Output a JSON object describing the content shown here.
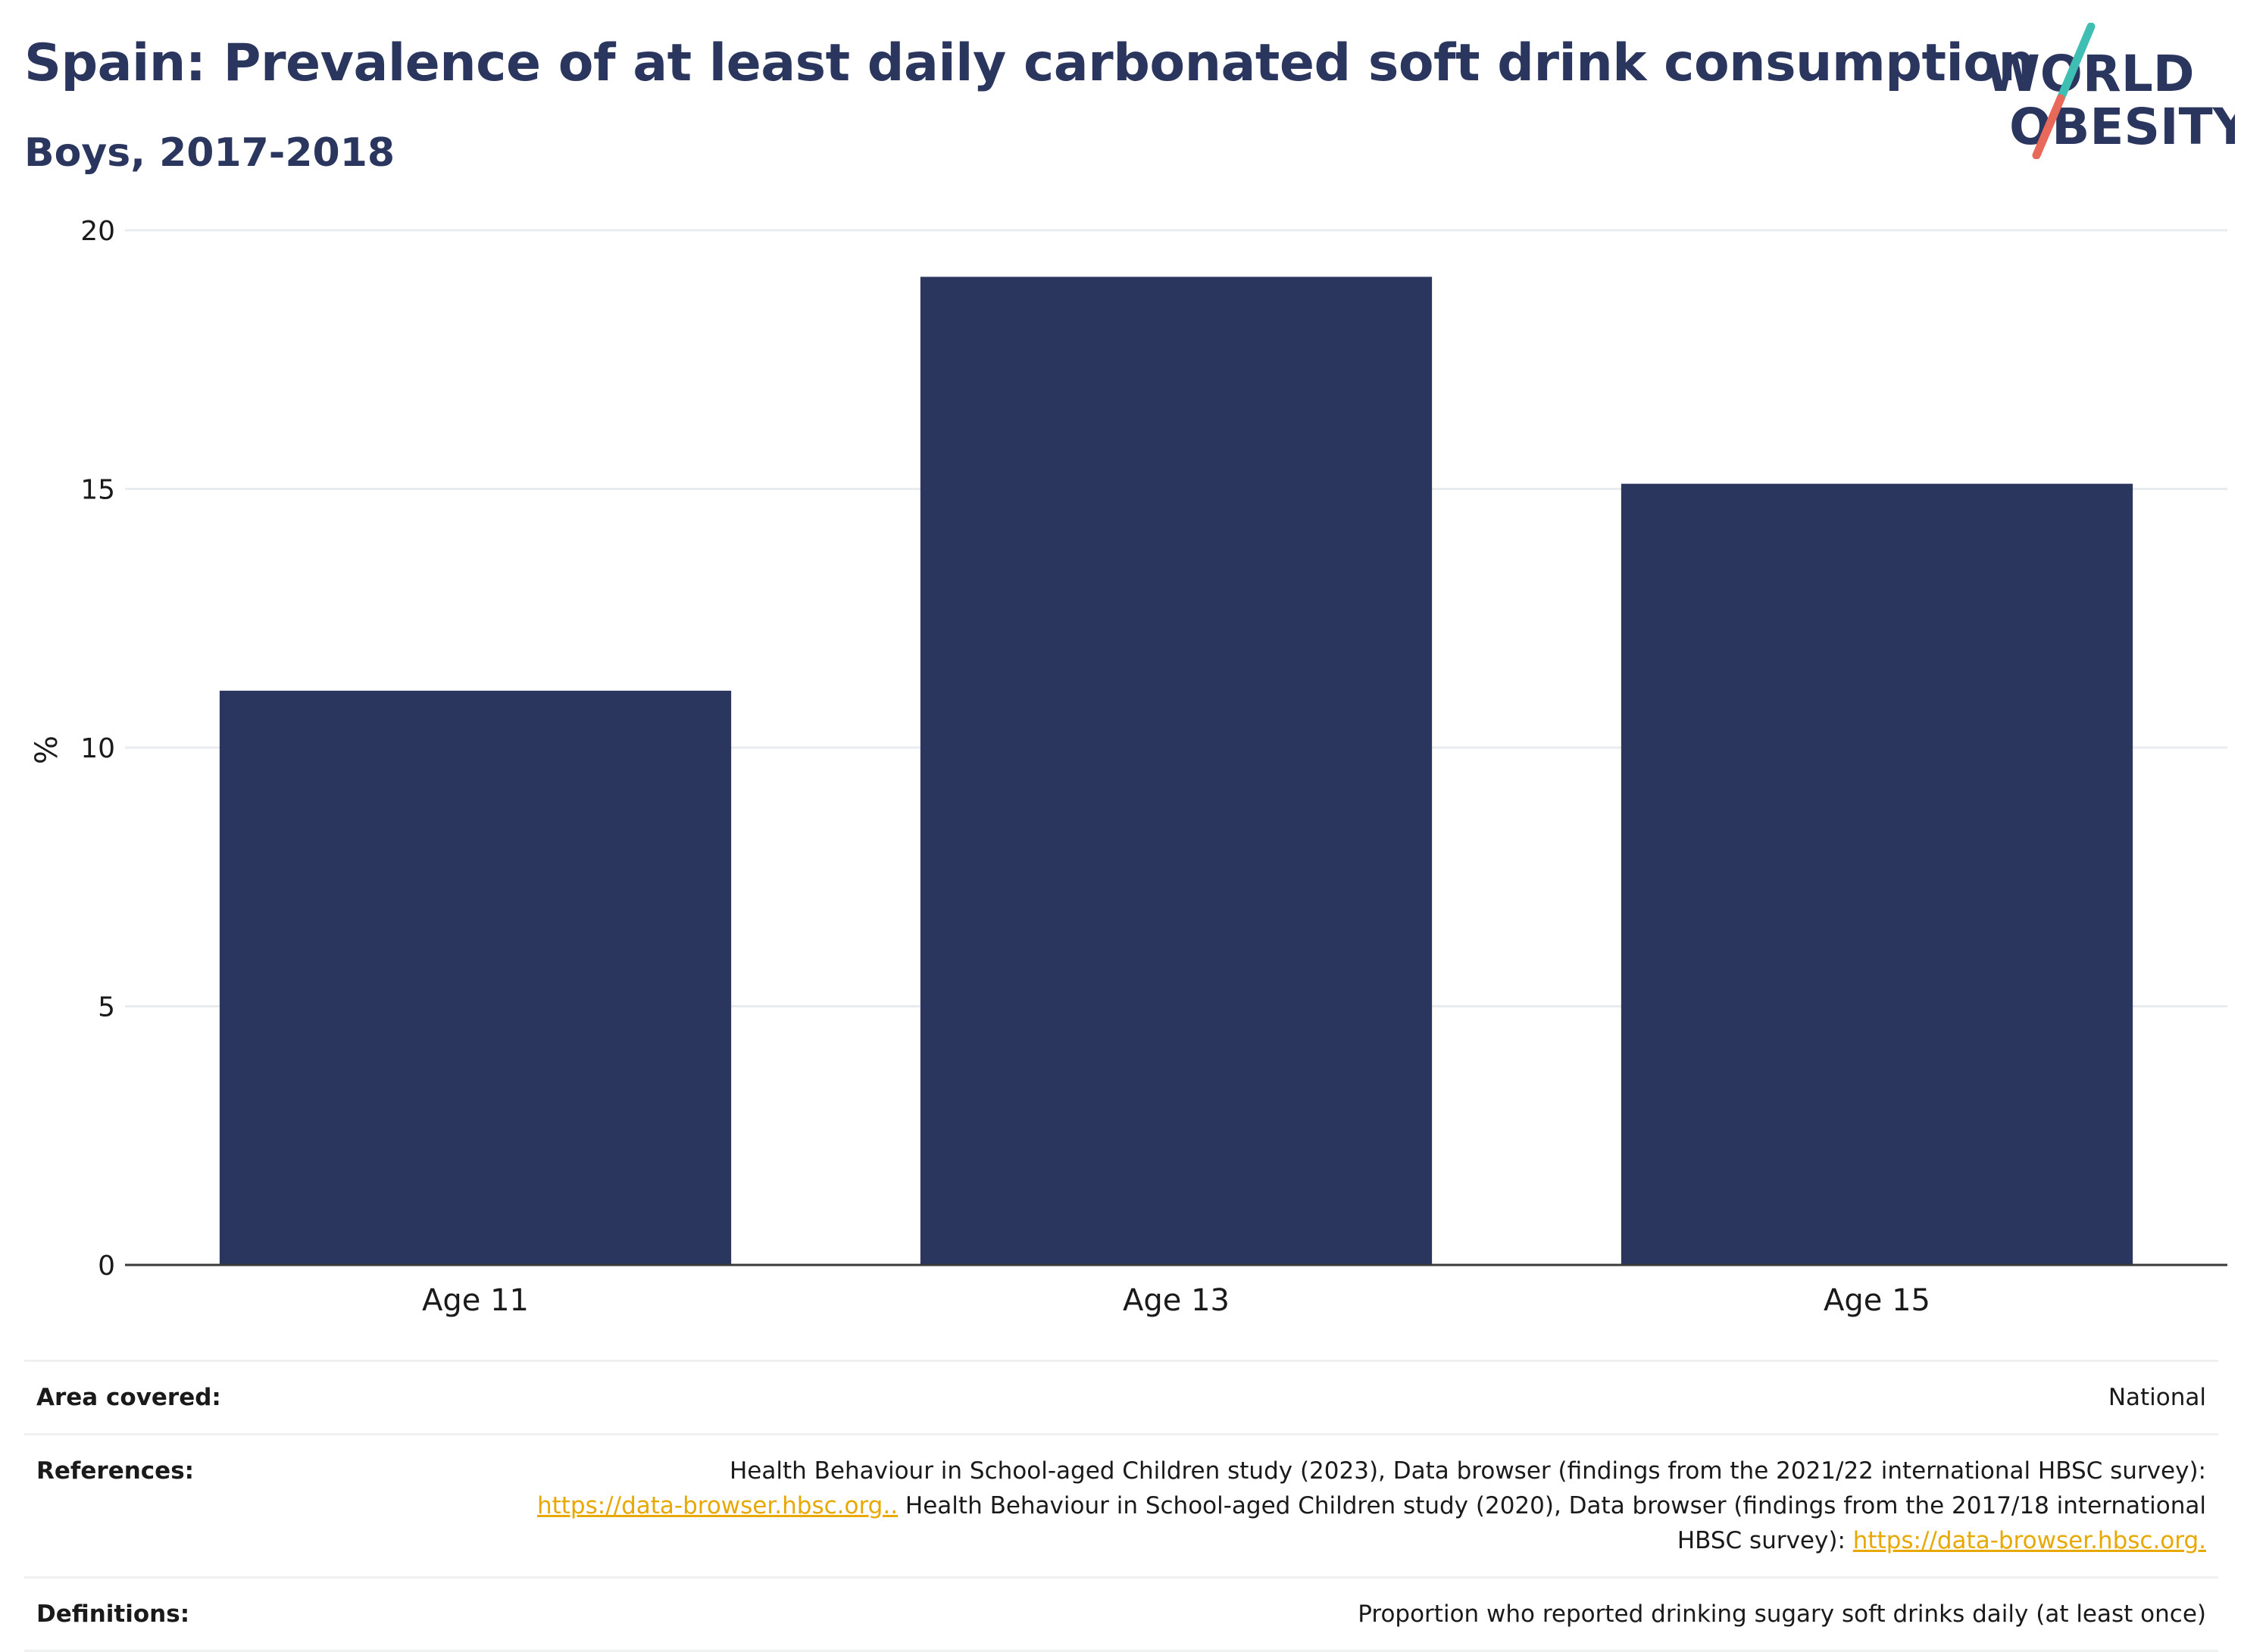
{
  "header": {
    "title": "Spain: Prevalence of at least daily carbonated soft drink consumption",
    "subtitle": "Boys, 2017-2018"
  },
  "logo": {
    "line1": "WORLD",
    "line2": "OBESITY",
    "colors": {
      "text": "#2b365f",
      "slash_top": "#3fbfb3",
      "slash_bottom": "#e8685a"
    }
  },
  "chart_data": {
    "type": "bar",
    "categories": [
      "Age 11",
      "Age 13",
      "Age 15"
    ],
    "values": [
      11.1,
      19.1,
      15.1
    ],
    "ylabel": "%",
    "ylim": [
      0,
      20
    ],
    "yticks": [
      0,
      5,
      10,
      15,
      20
    ],
    "grid": true,
    "bar_color": "#2b365f"
  },
  "info": {
    "area": {
      "label": "Area covered:",
      "value": "National"
    },
    "references": {
      "label": "References:",
      "part1": "Health Behaviour in School-aged Children study (2023), Data browser (findings from the 2021/22 international HBSC survey):",
      "link1": "https://data-browser.hbsc.org..",
      "part2": " Health Behaviour in School-aged Children study (2020), Data browser (findings from the 2017/18 international HBSC survey):",
      "link2": "https://data-browser.hbsc.org."
    },
    "definitions": {
      "label": "Definitions:",
      "value": "Proportion who reported drinking sugary soft drinks daily (at least once)"
    }
  }
}
